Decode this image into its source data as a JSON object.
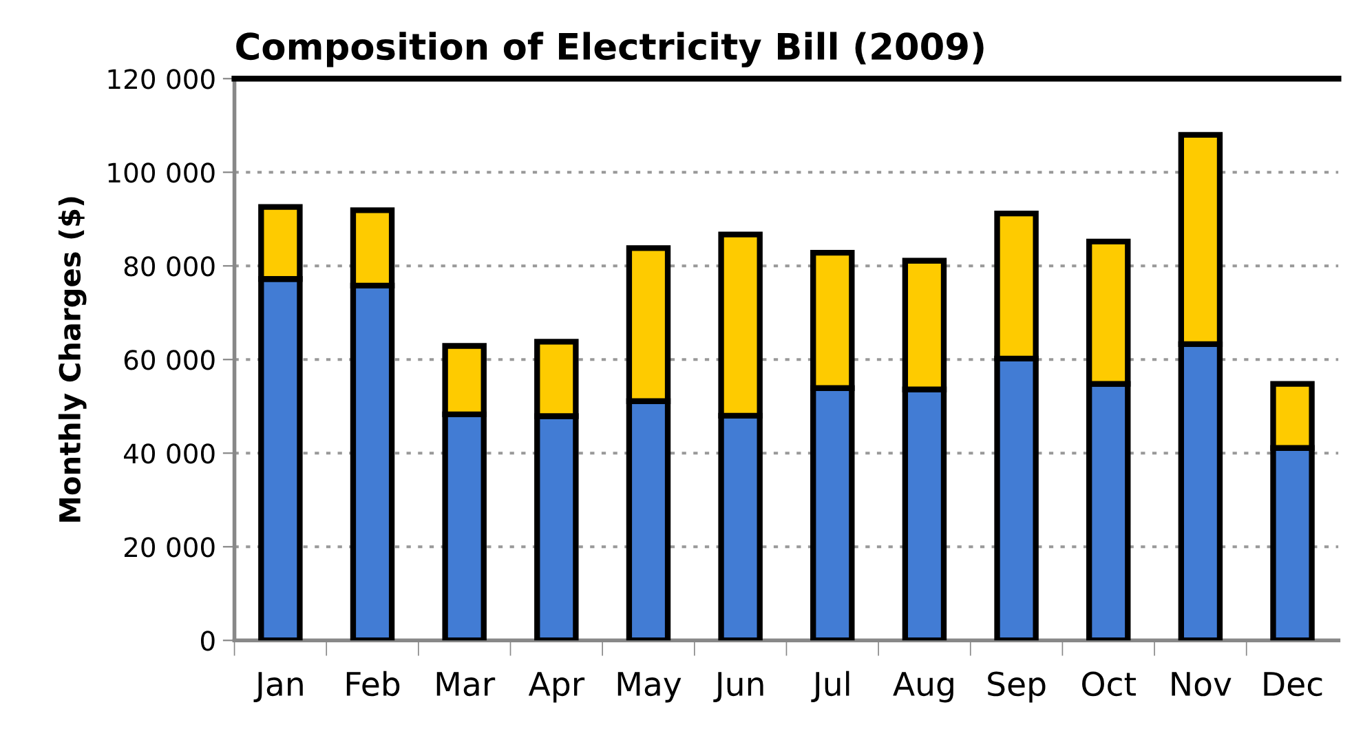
{
  "chart_data": {
    "type": "bar",
    "stacked": true,
    "title": "Composition of Electricity Bill (2009)",
    "ylabel": "Monthly Charges ($)",
    "categories": [
      "Jan",
      "Feb",
      "Mar",
      "Apr",
      "May",
      "Jun",
      "Jul",
      "Aug",
      "Sep",
      "Oct",
      "Nov",
      "Dec"
    ],
    "series": [
      {
        "color": "#427cd4",
        "values": [
          77200,
          75800,
          48300,
          47900,
          51100,
          48000,
          53900,
          53600,
          60200,
          54800,
          63300,
          41100
        ]
      },
      {
        "color": "#fecb00",
        "values": [
          15400,
          16100,
          14600,
          15900,
          32700,
          38700,
          28900,
          27500,
          31000,
          30400,
          44700,
          13700
        ]
      }
    ],
    "ylim": [
      0,
      120000
    ],
    "yticks": [
      0,
      {
        "value": 20000,
        "label": "20 000"
      },
      {
        "value": 40000,
        "label": "40 000"
      },
      {
        "value": 60000,
        "label": "60 000"
      },
      {
        "value": 80000,
        "label": "80 000"
      },
      {
        "value": 100000,
        "label": "100 000"
      },
      {
        "value": 120000,
        "label": "120 000"
      }
    ],
    "grid": "y"
  }
}
